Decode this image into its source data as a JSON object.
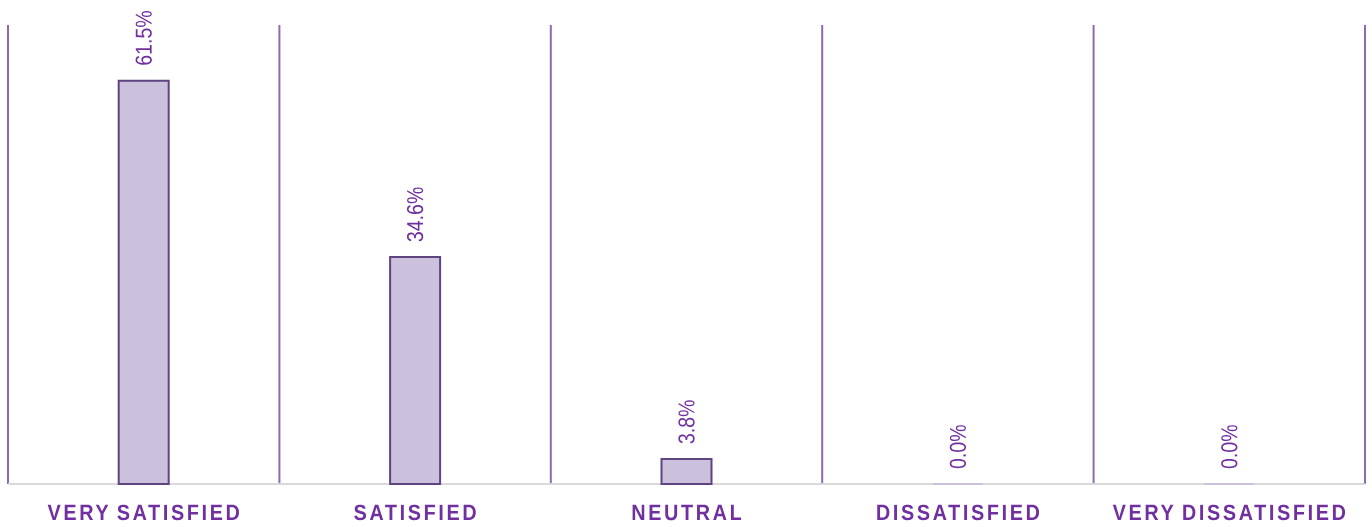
{
  "chart_data": {
    "type": "bar",
    "categories": [
      "VERY SATISFIED",
      "SATISFIED",
      "NEUTRAL",
      "DISSATISFIED",
      "VERY DISSATISFIED"
    ],
    "values": [
      61.5,
      34.6,
      3.8,
      0.0,
      0.0
    ],
    "value_labels": [
      "61.5%",
      "34.6%",
      "3.8%",
      "0.0%",
      "0.0%"
    ],
    "color": "#cbc1dc",
    "ylim": [
      0,
      70
    ],
    "grid": "x",
    "tick_labels": "x"
  }
}
